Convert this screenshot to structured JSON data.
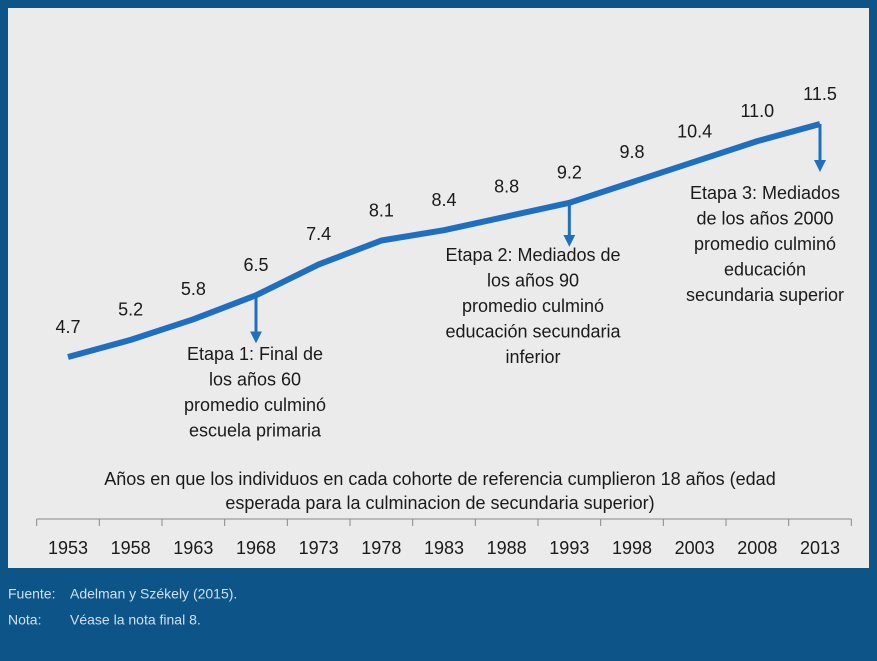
{
  "chart_data": {
    "type": "line",
    "x_label": [
      "Años en que los individuos en cada cohorte de referencia cumplieron 18 años (edad",
      "esperada para la culminacion de secundaria superior)"
    ],
    "categories": [
      "1953",
      "1958",
      "1963",
      "1968",
      "1973",
      "1978",
      "1983",
      "1988",
      "1993",
      "1998",
      "2003",
      "2008",
      "2013"
    ],
    "series": [
      {
        "color": "#1f6fc1",
        "values": [
          4.7,
          5.2,
          5.8,
          6.5,
          7.4,
          8.1,
          8.4,
          8.8,
          9.2,
          9.8,
          10.4,
          11.0,
          11.5
        ],
        "value_labels": [
          "4.7",
          "5.2",
          "5.8",
          "6.5",
          "7.4",
          "8.1",
          "8.4",
          "8.8",
          "9.2",
          "9.8",
          "10.4",
          "11.0",
          "11.5"
        ]
      }
    ],
    "annotations": [
      [
        "Etapa 1: Final de",
        "los años 60",
        "promedio culminó",
        "escuela primaria"
      ],
      [
        "Etapa 2: Mediados de",
        "los años 90",
        "promedio culminó",
        "educación secundaria",
        "inferior"
      ],
      [
        "Etapa 3: Mediados",
        "de los años 2000",
        "promedio culminó",
        "educación",
        "secundaria superior"
      ]
    ]
  },
  "footnotes": [
    {
      "label": "Fuente:",
      "text": "Adelman y Székely (2015)."
    },
    {
      "label": "Nota:",
      "text": "Véase la nota final 8."
    }
  ]
}
